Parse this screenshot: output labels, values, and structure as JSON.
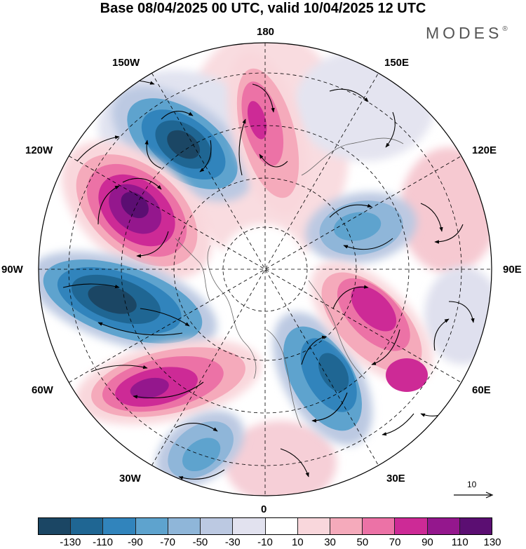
{
  "header": {
    "title": "Base 08/04/2025 00 UTC, valid 10/04/2025 12 UTC",
    "brand": "MODES",
    "brand_mark": "®"
  },
  "map": {
    "projection": "north polar stereographic",
    "field": "anomaly shading with wind vectors",
    "longitude_labels": {
      "top": "180",
      "bottom": "0",
      "left": "90W",
      "right": "90E",
      "upper_left_1": "150W",
      "upper_left_2": "120W",
      "lower_left_1": "60W",
      "lower_left_2": "30W",
      "upper_right_1": "150E",
      "upper_right_2": "120E",
      "lower_right_1": "60E",
      "lower_right_2": "30E"
    },
    "reference_vector": {
      "label": "10"
    }
  },
  "colorbar": {
    "colors": [
      "#1b4664",
      "#1f6693",
      "#3184bc",
      "#5ea3ce",
      "#8fb6d9",
      "#bcc9e2",
      "#e2e2ef",
      "#ffffff",
      "#f9d7dc",
      "#f5aabb",
      "#ec72a6",
      "#cd2a96",
      "#94178d",
      "#5b0e72"
    ],
    "tick_labels": [
      "-130",
      "-110",
      "-90",
      "-70",
      "-50",
      "-30",
      "-10",
      "10",
      "30",
      "50",
      "70",
      "90",
      "110",
      "130"
    ]
  }
}
